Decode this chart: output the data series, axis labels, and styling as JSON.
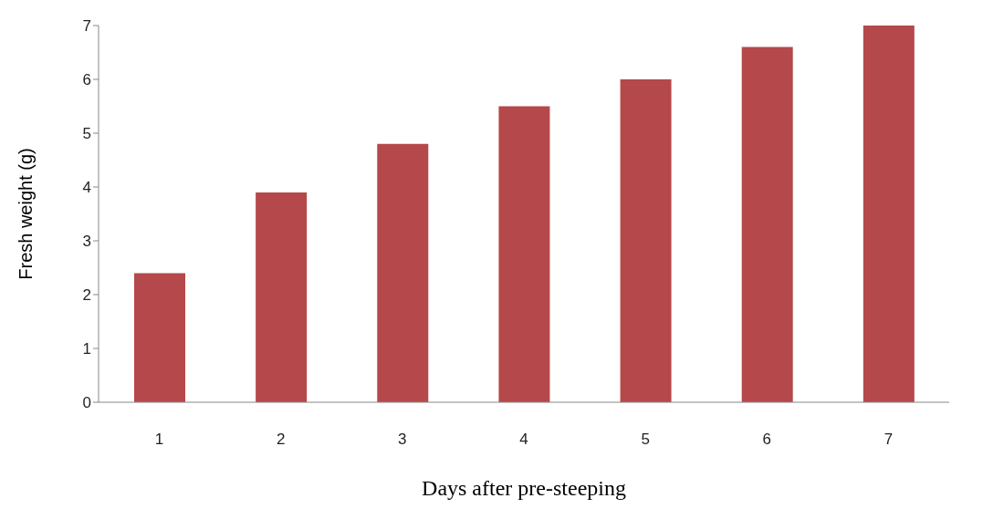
{
  "chart_data": {
    "type": "bar",
    "xlabel": "Days after pre-steeping",
    "ylabel": "Fresh weight (g)",
    "categories": [
      "1",
      "2",
      "3",
      "4",
      "5",
      "6",
      "7"
    ],
    "values": [
      2.4,
      3.9,
      4.8,
      5.5,
      6.0,
      6.6,
      7.0
    ],
    "color": "#b5484a",
    "ylim": [
      0,
      7
    ],
    "yticks": [
      0,
      1,
      2,
      3,
      4,
      5,
      6,
      7
    ],
    "grid": false
  }
}
